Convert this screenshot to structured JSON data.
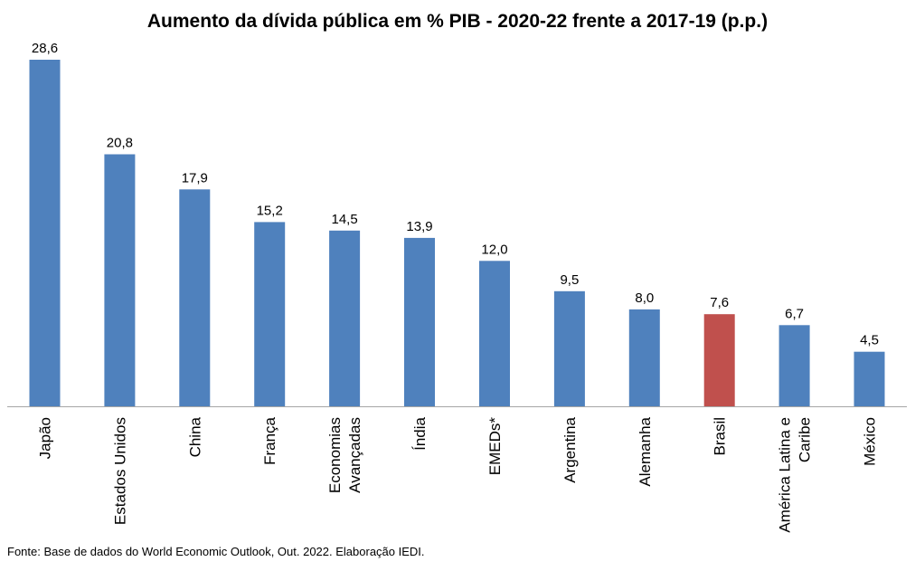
{
  "chart_data": {
    "type": "bar",
    "title": "Aumento da dívida pública em % PIB - 2020-22 frente a 2017-19 (p.p.)",
    "categories": [
      "Japão",
      "Estados Unidos",
      "China",
      "França",
      "Economias Avançadas",
      "Índia",
      "EMEDs*",
      "Argentina",
      "Alemanha",
      "Brasil",
      "América Latina e Caribe",
      "México"
    ],
    "category_lines": [
      [
        "Japão"
      ],
      [
        "Estados Unidos"
      ],
      [
        "China"
      ],
      [
        "França"
      ],
      [
        "Economias",
        "Avançadas"
      ],
      [
        "Índia"
      ],
      [
        "EMEDs*"
      ],
      [
        "Argentina"
      ],
      [
        "Alemanha"
      ],
      [
        "Brasil"
      ],
      [
        "América Latina e",
        "Caribe"
      ],
      [
        "México"
      ]
    ],
    "values": [
      28.6,
      20.8,
      17.9,
      15.2,
      14.5,
      13.9,
      12.0,
      9.5,
      8.0,
      7.6,
      6.7,
      4.5
    ],
    "value_labels": [
      "28,6",
      "20,8",
      "17,9",
      "15,2",
      "14,5",
      "13,9",
      "12,0",
      "9,5",
      "8,0",
      "7,6",
      "6,7",
      "4,5"
    ],
    "highlight_category": "Brasil",
    "colors": {
      "bar": "#4f81bd",
      "highlight": "#c0504d",
      "axis": "#a6a6a6",
      "text": "#000000"
    },
    "xlabel": "",
    "ylabel": "",
    "ylim": [
      0,
      30
    ],
    "grid": false,
    "legend": "none",
    "x_tick_rotation": "vertical"
  },
  "footer": {
    "source": "Fonte: Base de dados do World Economic Outlook, Out. 2022. Elaboração IEDI."
  }
}
